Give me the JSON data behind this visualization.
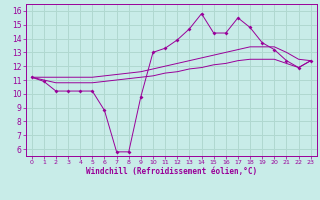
{
  "xlabel": "Windchill (Refroidissement éolien,°C)",
  "bg_color": "#c8ece8",
  "line_color": "#990099",
  "grid_color": "#b0d8d0",
  "x_ticks": [
    0,
    1,
    2,
    3,
    4,
    5,
    6,
    7,
    8,
    9,
    10,
    11,
    12,
    13,
    14,
    15,
    16,
    17,
    18,
    19,
    20,
    21,
    22,
    23
  ],
  "y_ticks": [
    6,
    7,
    8,
    9,
    10,
    11,
    12,
    13,
    14,
    15,
    16
  ],
  "ylim": [
    5.5,
    16.5
  ],
  "xlim": [
    -0.5,
    23.5
  ],
  "main_line": [
    11.2,
    10.9,
    10.2,
    10.2,
    10.2,
    10.2,
    8.8,
    5.8,
    5.8,
    9.8,
    13.0,
    13.3,
    13.9,
    14.7,
    15.8,
    14.4,
    14.4,
    15.5,
    14.8,
    13.7,
    13.2,
    12.4,
    11.9,
    12.4
  ],
  "upper_line": [
    11.2,
    11.2,
    11.2,
    11.2,
    11.2,
    11.2,
    11.3,
    11.4,
    11.5,
    11.6,
    11.8,
    12.0,
    12.2,
    12.4,
    12.6,
    12.8,
    13.0,
    13.2,
    13.4,
    13.4,
    13.4,
    13.0,
    12.5,
    12.4
  ],
  "lower_line": [
    11.2,
    11.0,
    10.8,
    10.8,
    10.8,
    10.8,
    10.9,
    11.0,
    11.1,
    11.2,
    11.3,
    11.5,
    11.6,
    11.8,
    11.9,
    12.1,
    12.2,
    12.4,
    12.5,
    12.5,
    12.5,
    12.2,
    11.9,
    12.4
  ]
}
